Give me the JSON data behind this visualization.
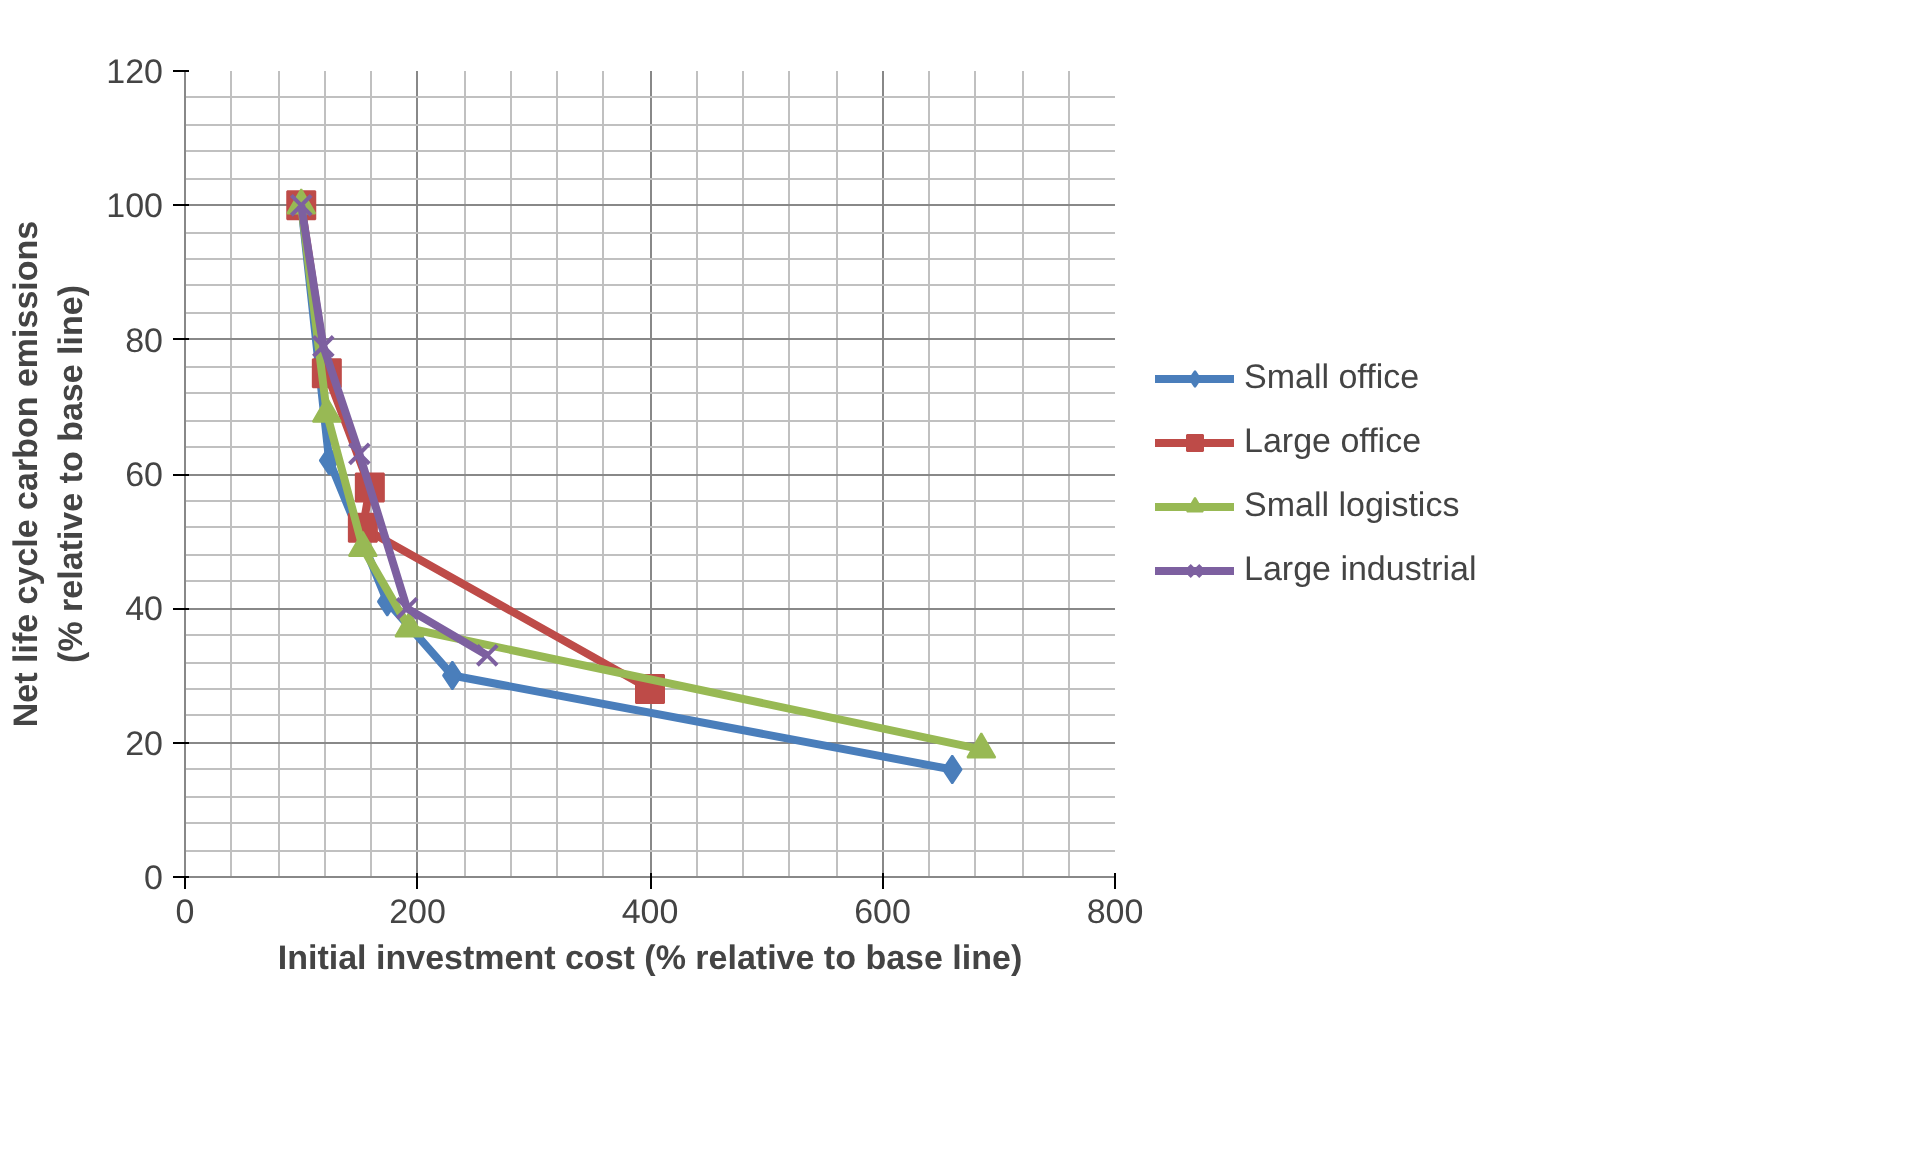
{
  "chart_data": {
    "type": "line",
    "xlabel": "Initial investment cost (% relative to base line)",
    "ylabel": "Net life cycle carbon emissions\n(% relative to base line)",
    "xlim": [
      0,
      800
    ],
    "xticks": [
      0,
      200,
      400,
      600,
      800
    ],
    "ylim": [
      0,
      120
    ],
    "yticks": [
      0,
      20,
      40,
      60,
      80,
      100,
      120
    ],
    "grid": true,
    "legend": "right",
    "series": [
      {
        "name": "Small office",
        "color": "#4a7ebb",
        "marker": "diamond",
        "x": [
          100,
          124,
          174,
          230,
          660
        ],
        "values": [
          100,
          62,
          41,
          30,
          16
        ]
      },
      {
        "name": "Large office",
        "color": "#be4b48",
        "marker": "square",
        "x": [
          100,
          122,
          159,
          153,
          400
        ],
        "values": [
          100,
          75,
          58,
          52,
          28
        ]
      },
      {
        "name": "Small logistics",
        "color": "#98b954",
        "marker": "triangle",
        "x": [
          100,
          122,
          153,
          193,
          685
        ],
        "values": [
          100,
          69,
          49,
          37,
          19
        ]
      },
      {
        "name": "Large industrial",
        "color": "#7d60a0",
        "marker": "x",
        "x": [
          100,
          119,
          150,
          191,
          260
        ],
        "values": [
          100,
          79,
          63,
          40,
          33
        ]
      }
    ]
  }
}
